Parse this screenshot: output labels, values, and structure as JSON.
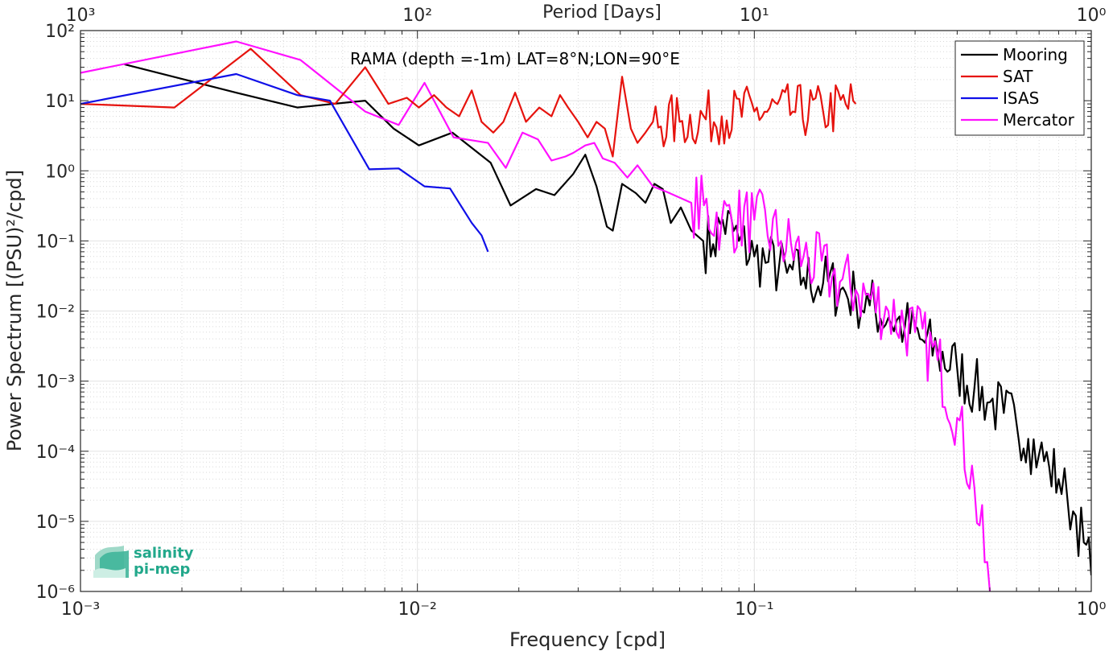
{
  "chart_data": {
    "type": "line",
    "title": "RAMA (depth =-1m) LAT=8°N;LON=90°E",
    "xlabel": "Frequency [cpd]",
    "ylabel": "Power Spectrum [(PSU)²/cpd]",
    "top_xlabel": "Period [Days]",
    "xscale": "log",
    "yscale": "log",
    "xlim": [
      0.001,
      1
    ],
    "ylim": [
      1e-06,
      100
    ],
    "x_ticks": [
      {
        "value": 0.001,
        "label": "10⁻³"
      },
      {
        "value": 0.01,
        "label": "10⁻²"
      },
      {
        "value": 0.1,
        "label": "10⁻¹"
      },
      {
        "value": 1,
        "label": "10⁰"
      }
    ],
    "top_ticks": [
      {
        "value": 0.001,
        "label": "10³"
      },
      {
        "value": 0.01,
        "label": "10²"
      },
      {
        "value": 0.1,
        "label": "10¹"
      },
      {
        "value": 1,
        "label": "10⁰"
      }
    ],
    "y_ticks": [
      {
        "value": 100,
        "label": "10²"
      },
      {
        "value": 10,
        "label": "10¹"
      },
      {
        "value": 1,
        "label": "10⁰"
      },
      {
        "value": 0.1,
        "label": "10⁻¹"
      },
      {
        "value": 0.01,
        "label": "10⁻²"
      },
      {
        "value": 0.001,
        "label": "10⁻³"
      },
      {
        "value": 0.0001,
        "label": "10⁻⁴"
      },
      {
        "value": 1e-05,
        "label": "10⁻⁵"
      },
      {
        "value": 1e-06,
        "label": "10⁻⁶"
      }
    ],
    "grid": true,
    "legend": "top-right",
    "series": [
      {
        "name": "Mooring",
        "color": "#000000",
        "noise_from": 0.07,
        "noise_amp": 0.45,
        "x": [
          0.00135,
          0.0029,
          0.0044,
          0.007,
          0.0085,
          0.0101,
          0.0127,
          0.0165,
          0.0189,
          0.0225,
          0.0255,
          0.029,
          0.0315,
          0.034,
          0.0365,
          0.038,
          0.0405,
          0.0445,
          0.0475,
          0.0505,
          0.0535,
          0.0565,
          0.0605,
          0.065,
          0.0705,
          0.0755,
          0.0805,
          0.09,
          0.1,
          0.11,
          0.125,
          0.14,
          0.16,
          0.18,
          0.2,
          0.22,
          0.25,
          0.28,
          0.31,
          0.35,
          0.4,
          0.45,
          0.5,
          0.55,
          0.6,
          0.65,
          0.7,
          0.75,
          0.8,
          0.85,
          0.9,
          0.95,
          1.0
        ],
        "y": [
          33,
          13,
          8,
          10,
          4,
          2.3,
          3.5,
          1.3,
          0.32,
          0.55,
          0.45,
          0.9,
          1.7,
          0.6,
          0.16,
          0.14,
          0.65,
          0.48,
          0.35,
          0.65,
          0.55,
          0.18,
          0.3,
          0.14,
          0.1,
          0.09,
          0.2,
          0.1,
          0.06,
          0.05,
          0.035,
          0.03,
          0.025,
          0.02,
          0.015,
          0.012,
          0.008,
          0.006,
          0.004,
          0.0025,
          0.0015,
          0.0008,
          0.0005,
          0.00035,
          0.00025,
          0.00015,
          9e-05,
          6e-05,
          4e-05,
          2e-05,
          1.2e-05,
          5e-06,
          1.7e-06
        ]
      },
      {
        "name": "SAT",
        "color": "#e6130e",
        "noise_from": 0.05,
        "noise_amp": 0.4,
        "x": [
          0.001,
          0.0019,
          0.0032,
          0.0045,
          0.0057,
          0.007,
          0.0082,
          0.0093,
          0.0101,
          0.0112,
          0.0122,
          0.0133,
          0.0145,
          0.0155,
          0.0168,
          0.018,
          0.0195,
          0.021,
          0.023,
          0.025,
          0.0265,
          0.028,
          0.03,
          0.032,
          0.034,
          0.036,
          0.038,
          0.0405,
          0.043,
          0.045,
          0.0475,
          0.05,
          0.06,
          0.08,
          0.1,
          0.13,
          0.16,
          0.2
        ],
        "y": [
          9,
          8,
          55,
          12,
          9,
          30,
          9,
          11,
          8,
          12,
          8,
          6,
          14,
          5,
          3.5,
          5,
          13,
          5,
          8,
          6,
          12,
          8,
          5,
          3,
          5,
          4,
          1.6,
          22,
          4,
          2.5,
          3.5,
          5,
          5,
          6,
          7,
          7,
          7,
          9
        ]
      },
      {
        "name": "ISAS",
        "color": "#1010e8",
        "noise_from": 99,
        "noise_amp": 0,
        "x": [
          0.001,
          0.0029,
          0.0044,
          0.0055,
          0.0072,
          0.0088,
          0.0105,
          0.0125,
          0.0145,
          0.0155,
          0.0162
        ],
        "y": [
          9,
          24,
          12,
          10,
          1.05,
          1.08,
          0.6,
          0.56,
          0.18,
          0.12,
          0.07
        ]
      },
      {
        "name": "Mercator",
        "color": "#ff10ff",
        "noise_from": 0.06,
        "noise_amp": 0.5,
        "x": [
          0.001,
          0.0029,
          0.0045,
          0.007,
          0.0088,
          0.0105,
          0.0128,
          0.0162,
          0.0183,
          0.0205,
          0.0228,
          0.025,
          0.0275,
          0.029,
          0.0315,
          0.0335,
          0.0355,
          0.0385,
          0.042,
          0.045,
          0.05,
          0.055,
          0.065,
          0.08,
          0.1,
          0.12,
          0.14,
          0.17,
          0.2,
          0.25,
          0.3,
          0.35,
          0.4,
          0.45,
          0.5
        ],
        "y": [
          25,
          70,
          38,
          7,
          4.5,
          18,
          3,
          2.5,
          1.1,
          3.5,
          2.8,
          1.4,
          1.6,
          1.8,
          2.3,
          2.5,
          1.5,
          1.3,
          0.8,
          1.2,
          0.6,
          0.5,
          0.35,
          0.2,
          0.2,
          0.1,
          0.06,
          0.03,
          0.02,
          0.01,
          0.005,
          0.002,
          0.0003,
          3e-05,
          1e-06
        ]
      }
    ]
  },
  "logo": {
    "line1": "salinity",
    "line2": "pi-mep"
  }
}
